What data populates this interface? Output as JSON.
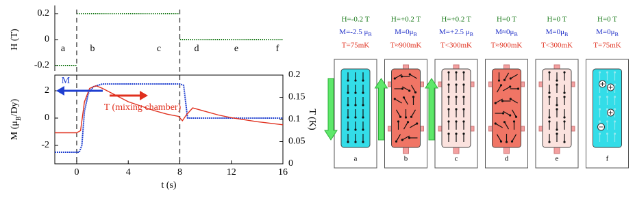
{
  "chart_data": [
    {
      "type": "line",
      "ylabel": "H (T)",
      "x": [
        -1.7,
        0,
        0,
        0,
        8,
        8,
        8,
        16
      ],
      "series": [
        {
          "color": "#1a7a1a",
          "values": [
            -0.2,
            -0.2,
            null,
            0.2,
            0.2,
            null,
            0,
            0
          ]
        }
      ],
      "xlim": [
        -1.7,
        16
      ],
      "ylim": [
        -0.242,
        0.263
      ],
      "yticks": [
        0.2,
        0,
        -0.2
      ],
      "vlines": [
        0,
        8
      ],
      "annotations": [
        "a",
        "b",
        "c",
        "d",
        "e",
        "f"
      ]
    },
    {
      "type": "line",
      "xlabel": "t (s)",
      "ylabel": [
        "M (μ",
        "B",
        "/Dy)"
      ],
      "y2label": "T (K)",
      "xlim": [
        -1.7,
        16
      ],
      "xticks": [
        0,
        4,
        8,
        12,
        16
      ],
      "ylim": [
        -3.35,
        3.15
      ],
      "yticks": [
        -2,
        0,
        2
      ],
      "y2lim": [
        0,
        0.2
      ],
      "y2ticks": [
        0,
        0.05,
        0.1,
        0.15,
        0.2
      ],
      "series": [
        {
          "name": "M",
          "color": "#1f3fd0",
          "x": [
            -1.7,
            0.2,
            0.4,
            0.6,
            0.9,
            1.3,
            2,
            8,
            8.3,
            8.6,
            16
          ],
          "values": [
            -2.5,
            -2.5,
            -2.0,
            0.5,
            1.8,
            2.3,
            2.5,
            2.5,
            2.4,
            0,
            0
          ]
        },
        {
          "name": "T (mixing chamber)",
          "color": "#e0301e",
          "axis": "y2",
          "x": [
            -1.7,
            0,
            0.3,
            0.6,
            1,
            1.5,
            2,
            3,
            4,
            5,
            6,
            7,
            7.9,
            8.2,
            8.5,
            9,
            10,
            11,
            12,
            14,
            16
          ],
          "values": [
            0.07,
            0.07,
            0.075,
            0.14,
            0.17,
            0.176,
            0.17,
            0.155,
            0.14,
            0.13,
            0.12,
            0.112,
            0.107,
            0.097,
            0.11,
            0.126,
            0.118,
            0.11,
            0.104,
            0.095,
            0.088
          ]
        }
      ]
    }
  ],
  "panels": [
    {
      "h": "H=-0.2 T",
      "m": "M=-2.5 μ",
      "m_sub": "B",
      "t": "T=75mK",
      "label": "a"
    },
    {
      "h": "H=+0.2 T",
      "m": "M=0μ",
      "m_sub": "B",
      "t": "T≈900mK",
      "label": "b"
    },
    {
      "h": "H=+0.2 T",
      "m": "M=+2.5 μ",
      "m_sub": "B",
      "t": "T<300mK",
      "label": "c"
    },
    {
      "h": "H=0 T",
      "m": "M≈0μ",
      "m_sub": "B",
      "t": "T≈900mK",
      "label": "d"
    },
    {
      "h": "H=0 T",
      "m": "M=0μ",
      "m_sub": "B",
      "t": "T<300mK",
      "label": "e"
    },
    {
      "h": "H=0 T",
      "m": "M=0μ",
      "m_sub": "B",
      "t": "T=75mK",
      "label": "f"
    }
  ]
}
